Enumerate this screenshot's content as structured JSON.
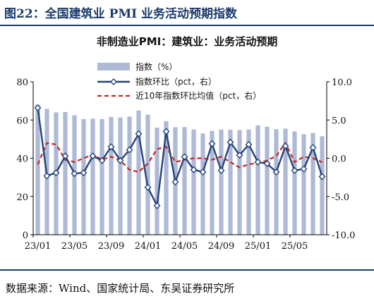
{
  "figure_title": "图22：全国建筑业 PMI 业务活动预期指数",
  "source": "数据来源：Wind、国家统计局、东吴证券研究所",
  "colors": {
    "bar": "#aeb9d6",
    "line": "#26437a",
    "avg": "#c8251d",
    "rule": "#1d3a6b"
  },
  "chart_data": {
    "type": "bar",
    "title": "非制造业PMI：建筑业：业务活动预期",
    "x": [
      "23/01",
      "23/02",
      "23/03",
      "23/04",
      "23/05",
      "23/06",
      "23/07",
      "23/08",
      "23/09",
      "23/10",
      "23/11",
      "23/12",
      "24/01",
      "24/02",
      "24/03",
      "24/04",
      "24/05",
      "24/06",
      "24/07",
      "24/08",
      "24/09",
      "24/10",
      "24/11",
      "24/12",
      "25/01",
      "25/02",
      "25/03",
      "25/04",
      "25/05",
      "25/06",
      "25/07",
      "25/08"
    ],
    "xticks": [
      "23/01",
      "23/05",
      "23/09",
      "24/01",
      "24/05",
      "24/09",
      "25/01",
      "25/05"
    ],
    "left_axis": {
      "ylim": [
        0,
        80
      ],
      "ticks": [
        "0",
        "20",
        "40",
        "60",
        "80"
      ]
    },
    "right_axis": {
      "ylim": [
        -10,
        10
      ],
      "ticks": [
        "-10.0",
        "-5.0",
        "0.0",
        "5.0",
        "10.0"
      ]
    },
    "legend_position": "top-right",
    "series": [
      {
        "name": "指数（%）",
        "type": "bar",
        "axis": "left",
        "values": [
          68.0,
          65.8,
          64.0,
          64.2,
          62.5,
          60.5,
          60.7,
          60.5,
          61.6,
          61.3,
          61.8,
          65.0,
          62.8,
          56.0,
          59.4,
          56.2,
          56.3,
          55.1,
          53.0,
          54.3,
          55.0,
          54.9,
          54.7,
          55.0,
          57.2,
          56.5,
          55.2,
          55.5,
          54.0,
          52.6,
          53.2,
          51.5
        ]
      },
      {
        "name": "指数环比（pct，右）",
        "type": "line",
        "axis": "right",
        "values": [
          6.6,
          -2.3,
          -1.9,
          0.3,
          -2.0,
          -1.9,
          0.3,
          -0.3,
          1.5,
          -0.3,
          1.1,
          3.2,
          -3.8,
          -6.2,
          3.5,
          -3.1,
          0.2,
          -1.5,
          -1.8,
          1.9,
          -1.6,
          2.1,
          0.4,
          1.8,
          -0.5,
          -0.7,
          -1.8,
          1.6,
          -1.6,
          -1.4,
          1.4,
          -2.4
        ]
      },
      {
        "name": "近10年指数环比均值（pct，右）",
        "type": "line",
        "style": "dashed",
        "axis": "right",
        "values": [
          -0.8,
          2.0,
          1.8,
          -0.2,
          -0.5,
          0.0,
          0.5,
          -0.2,
          0.2,
          -0.3,
          -1.5,
          -1.8,
          -0.7,
          1.2,
          1.5,
          -0.5,
          -0.2,
          0.0,
          0.0,
          -0.2,
          0.2,
          -0.5,
          -1.2,
          -0.8,
          -0.6,
          -0.3,
          0.3,
          2.0,
          -0.5,
          0.2,
          0.0,
          -0.5
        ]
      }
    ]
  }
}
